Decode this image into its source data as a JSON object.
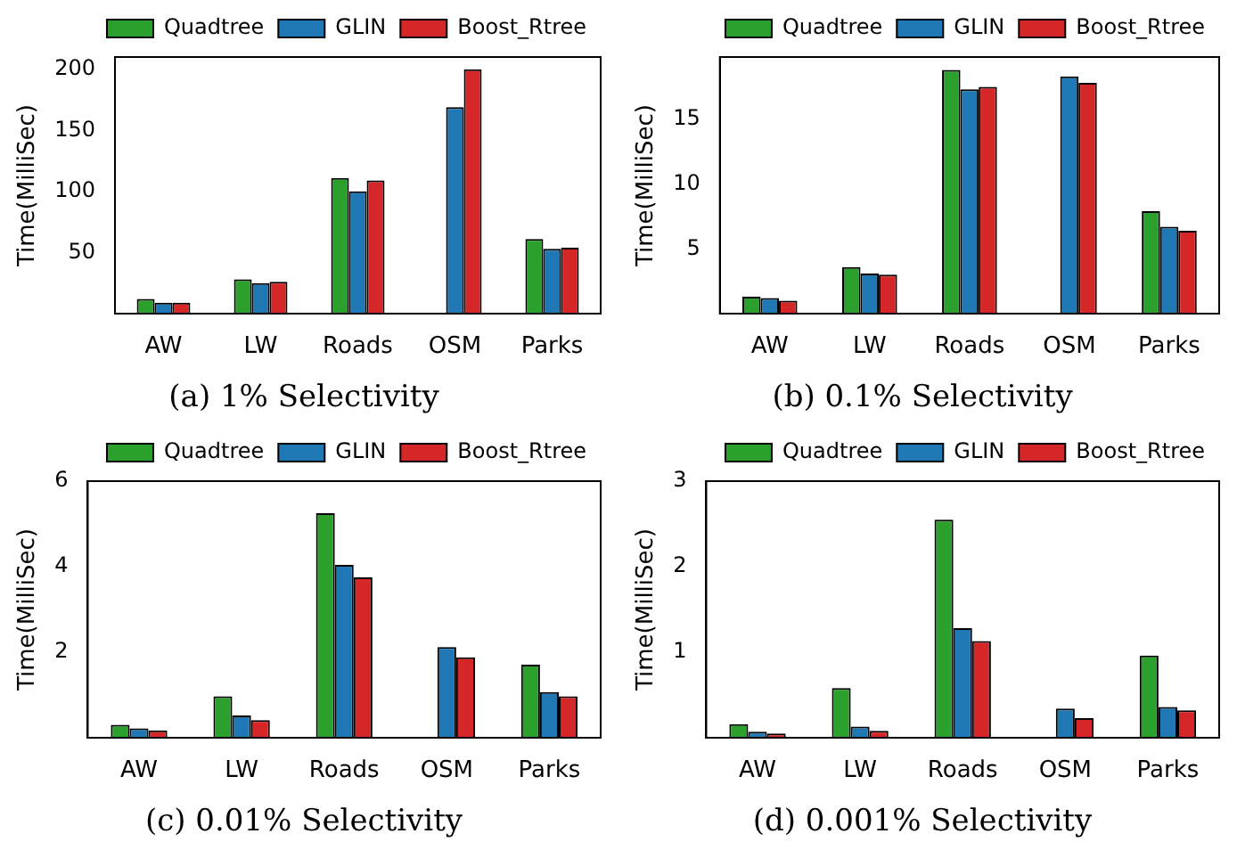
{
  "chart_data": [
    {
      "type": "bar",
      "title": "(a) 1% Selectivity",
      "ylabel": "Time(MilliSec)",
      "categories": [
        "AW",
        "LW",
        "Roads",
        "OSM",
        "Parks"
      ],
      "legend": "top",
      "ylim": [
        0,
        210
      ],
      "yticks": [
        50,
        100,
        150,
        200
      ],
      "series": [
        {
          "name": "Quadtree",
          "color": "#2ca02c",
          "values": [
            12,
            28,
            111,
            0,
            61
          ]
        },
        {
          "name": "GLIN",
          "color": "#1f77b4",
          "values": [
            9,
            25,
            100,
            169,
            53
          ]
        },
        {
          "name": "Boost_Rtree",
          "color": "#d62728",
          "values": [
            9,
            26,
            109,
            200,
            54
          ]
        }
      ]
    },
    {
      "type": "bar",
      "title": "(b) 0.1% Selectivity",
      "ylabel": "Time(MilliSec)",
      "categories": [
        "AW",
        "LW",
        "Roads",
        "OSM",
        "Parks"
      ],
      "legend": "top",
      "ylim": [
        0,
        19.8
      ],
      "yticks": [
        5,
        10,
        15
      ],
      "series": [
        {
          "name": "Quadtree",
          "color": "#2ca02c",
          "values": [
            1.3,
            3.6,
            18.8,
            0,
            7.9
          ]
        },
        {
          "name": "GLIN",
          "color": "#1f77b4",
          "values": [
            1.2,
            3.1,
            17.3,
            18.3,
            6.7
          ]
        },
        {
          "name": "Boost_Rtree",
          "color": "#d62728",
          "values": [
            1.0,
            3.0,
            17.5,
            17.8,
            6.4
          ]
        }
      ]
    },
    {
      "type": "bar",
      "title": "(c) 0.01% Selectivity",
      "ylabel": "Time(MilliSec)",
      "categories": [
        "AW",
        "LW",
        "Roads",
        "OSM",
        "Parks"
      ],
      "legend": "top",
      "ylim": [
        0,
        6
      ],
      "yticks": [
        2,
        4,
        6
      ],
      "series": [
        {
          "name": "Quadtree",
          "color": "#2ca02c",
          "values": [
            0.3,
            0.97,
            5.25,
            0,
            1.71
          ]
        },
        {
          "name": "GLIN",
          "color": "#1f77b4",
          "values": [
            0.22,
            0.52,
            4.04,
            2.12,
            1.07
          ]
        },
        {
          "name": "Boost_Rtree",
          "color": "#d62728",
          "values": [
            0.17,
            0.41,
            3.75,
            1.88,
            0.97
          ]
        }
      ]
    },
    {
      "type": "bar",
      "title": "(d) 0.001% Selectivity",
      "ylabel": "Time(MilliSec)",
      "categories": [
        "AW",
        "LW",
        "Roads",
        "OSM",
        "Parks"
      ],
      "legend": "top",
      "ylim": [
        0,
        3
      ],
      "yticks": [
        1,
        2,
        3
      ],
      "series": [
        {
          "name": "Quadtree",
          "color": "#2ca02c",
          "values": [
            0.16,
            0.58,
            2.55,
            0,
            0.96
          ]
        },
        {
          "name": "GLIN",
          "color": "#1f77b4",
          "values": [
            0.07,
            0.13,
            1.28,
            0.34,
            0.36
          ]
        },
        {
          "name": "Boost_Rtree",
          "color": "#d62728",
          "values": [
            0.05,
            0.08,
            1.13,
            0.23,
            0.32
          ]
        }
      ]
    }
  ]
}
